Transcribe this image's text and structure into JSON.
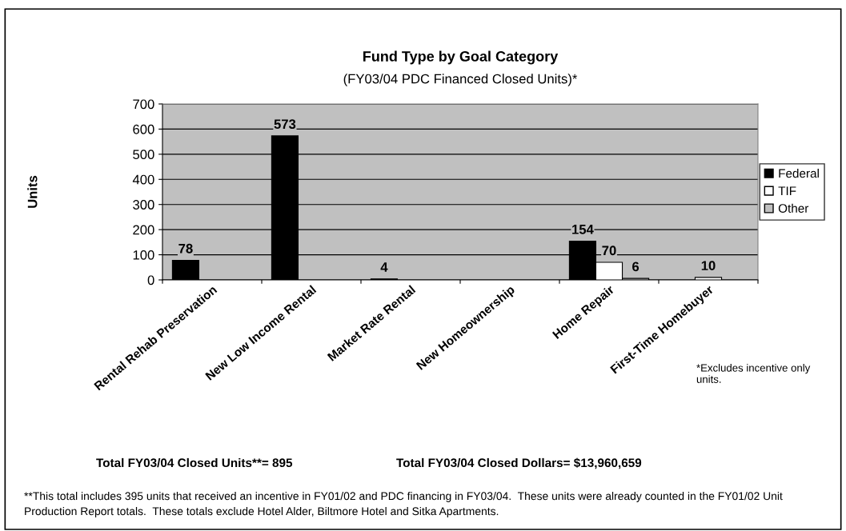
{
  "chart_data": {
    "type": "bar",
    "title": "Fund Type by Goal Category",
    "subtitle": "(FY03/04 PDC Financed Closed Units)*",
    "ylabel": "Units",
    "categories": [
      "Rental Rehab Preservation",
      "New Low Income Rental",
      "Market Rate Rental",
      "New Homeownership",
      "Home Repair",
      "First-Time Homebuyer"
    ],
    "series": [
      {
        "name": "Federal",
        "color": "#000000",
        "values": [
          78,
          573,
          4,
          null,
          154,
          null
        ]
      },
      {
        "name": "TIF",
        "color": "#ffffff",
        "values": [
          null,
          null,
          null,
          null,
          70,
          10
        ]
      },
      {
        "name": "Other",
        "color": "#c0c0c0",
        "values": [
          null,
          null,
          null,
          null,
          6,
          null
        ]
      }
    ],
    "ylim": [
      0,
      700
    ],
    "yticks": [
      0,
      100,
      200,
      300,
      400,
      500,
      600,
      700
    ],
    "grid": "y",
    "legend": "right",
    "data_labels": true,
    "annotations": [
      "*Excludes incentive only units.",
      "Total FY03/04 Closed Units**= 895",
      "Total FY03/04 Closed Dollars= $13,960,659",
      "**This total includes 395 units that received an incentive in FY01/02 and PDC financing in FY03/04.  These units were already counted in the FY01/02 Unit Production Report totals.  These totals exclude Hotel Alder, Biltmore Hotel and Sitka Apartments."
    ]
  }
}
